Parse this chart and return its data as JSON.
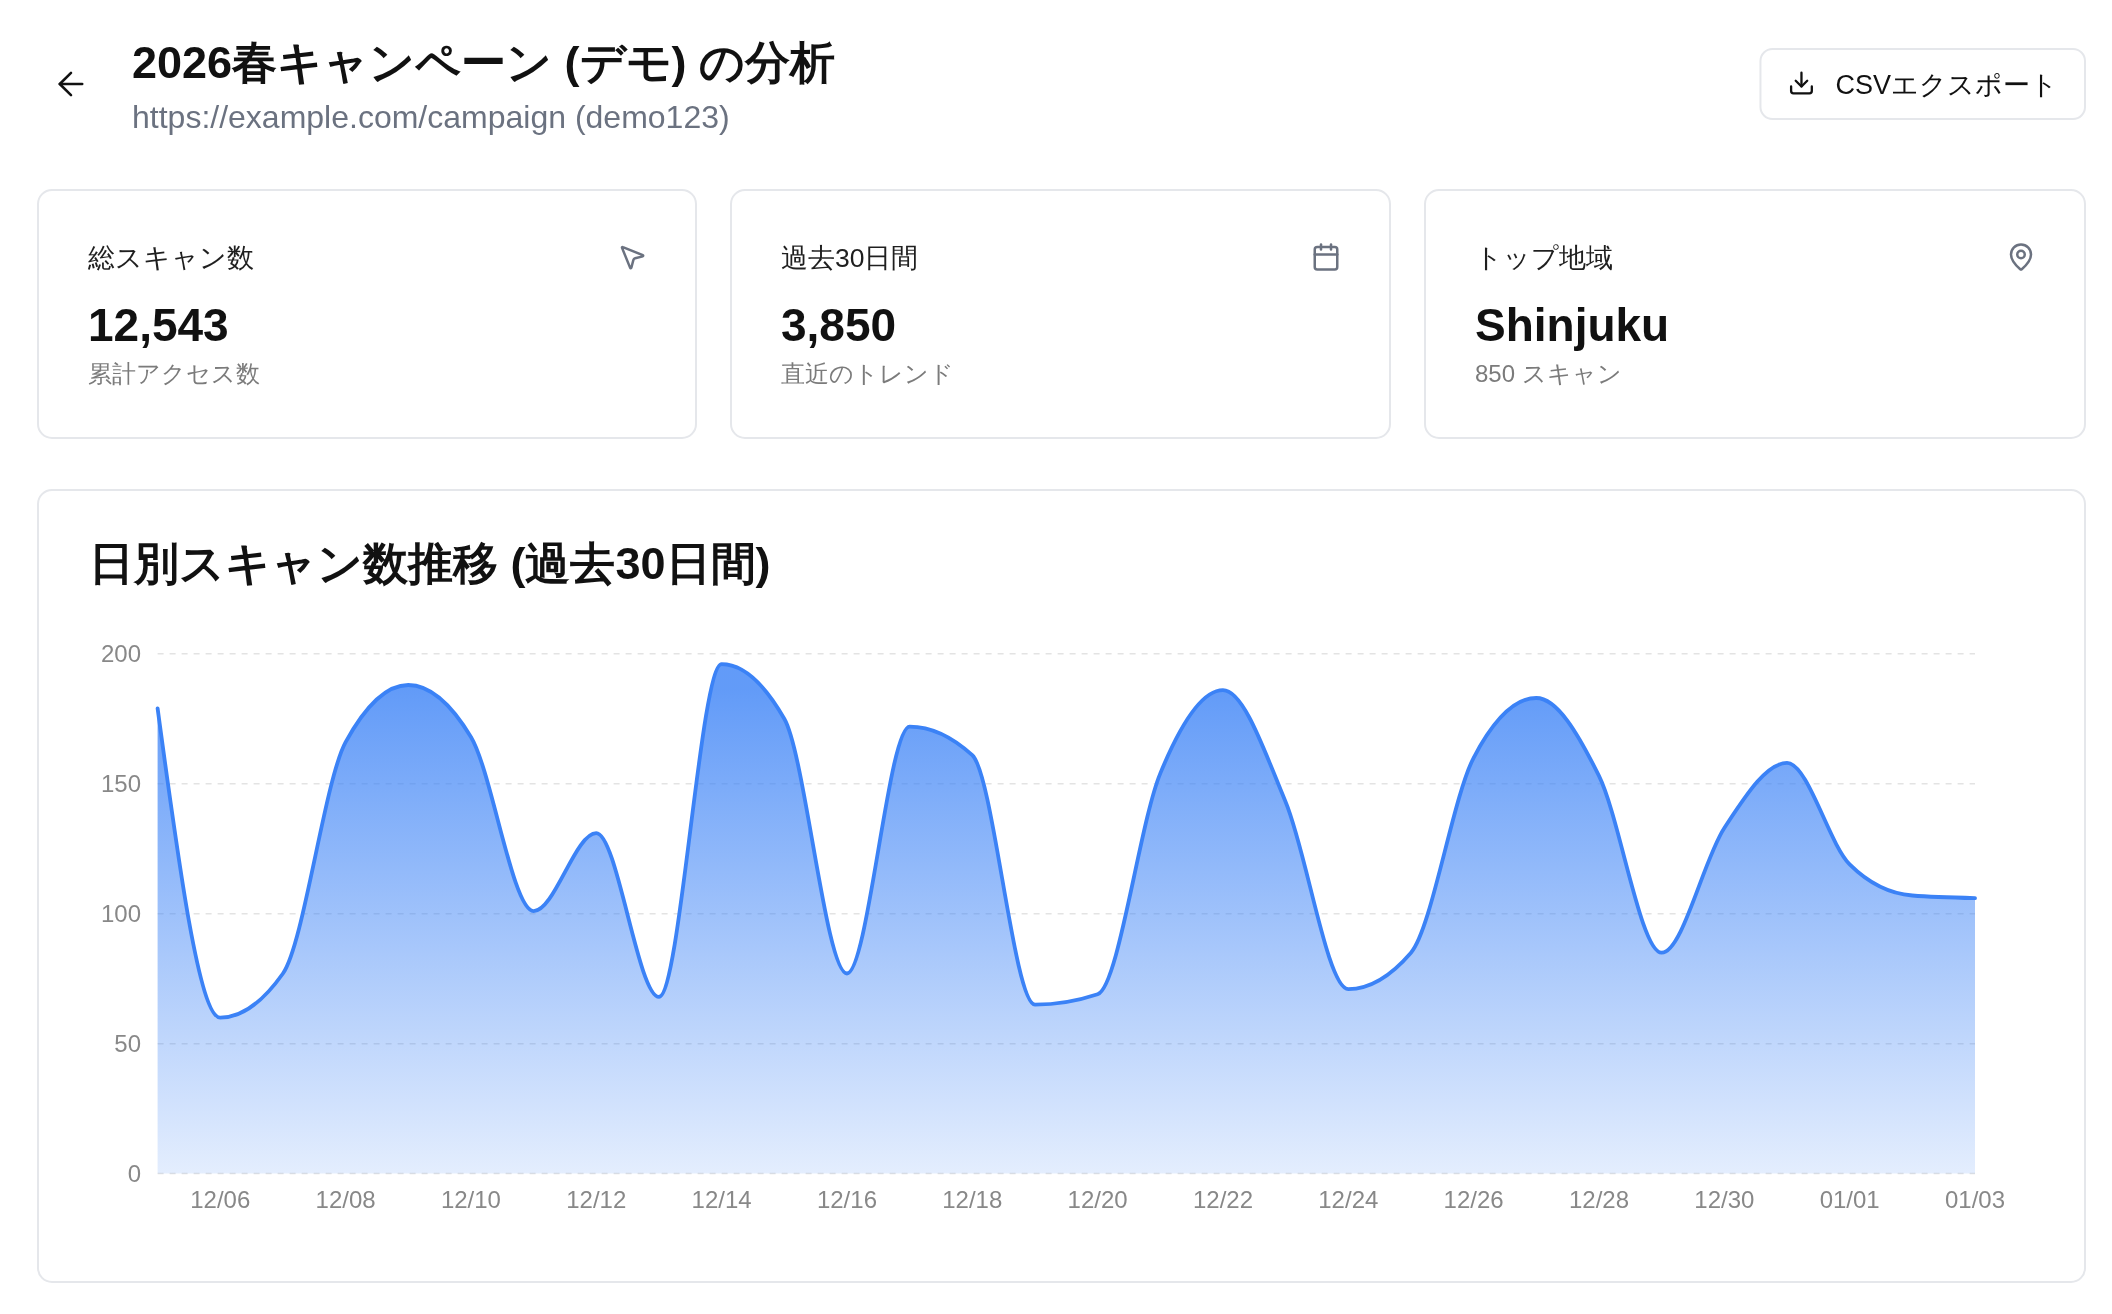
{
  "chart_data": [
    {
      "type": "other",
      "title": "2026春キャンペーン (デモ) の分析",
      "subtitle": "https://example.com/campaign (demo123)",
      "annotations": [
        "CSVエクスポート"
      ]
    },
    {
      "type": "other",
      "title": "総スキャン数",
      "annotations": [
        "12,543",
        "累計アクセス数"
      ]
    },
    {
      "type": "other",
      "title": "過去30日間",
      "annotations": [
        "3,850",
        "直近のトレンド"
      ]
    },
    {
      "type": "other",
      "title": "トップ地域",
      "annotations": [
        "Shinjuku",
        "850 スキャン"
      ]
    },
    {
      "type": "area",
      "title": "日別スキャン数推移 (過去30日間)",
      "categories": [
        null,
        "12/06",
        null,
        "12/08",
        null,
        "12/10",
        null,
        "12/12",
        null,
        "12/14",
        null,
        "12/16",
        null,
        "12/18",
        null,
        "12/20",
        null,
        "12/22",
        null,
        "12/24",
        null,
        "12/26",
        null,
        "12/28",
        null,
        "12/30",
        null,
        "01/01",
        null,
        "01/03"
      ],
      "series": [
        {
          "color": "#3b82f6",
          "values": [
            179,
            60,
            77,
            166,
            188,
            168,
            101,
            131,
            68,
            196,
            175,
            77,
            172,
            161,
            65,
            69,
            154,
            186,
            143,
            71,
            85,
            160,
            183,
            153,
            85,
            133,
            158,
            119,
            107,
            106
          ]
        }
      ],
      "ylim": [
        0,
        200
      ],
      "yticks": [
        0,
        50,
        100,
        150,
        200
      ],
      "grid": "y"
    }
  ]
}
